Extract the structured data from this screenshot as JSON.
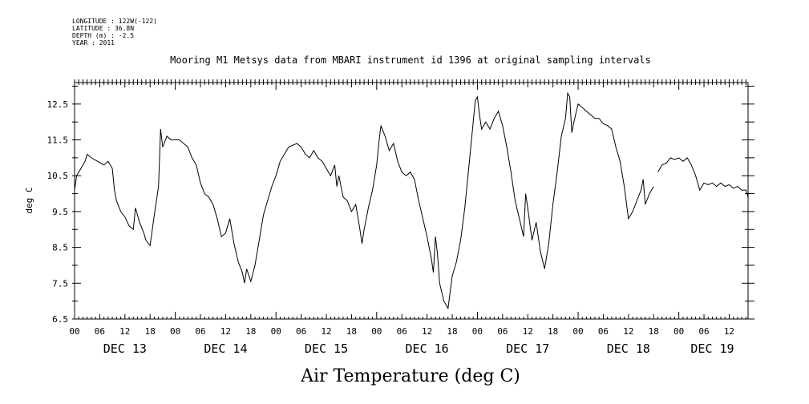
{
  "header": {
    "longitude": "LONGITUDE : 122W(-122)",
    "latitude": "LATITUDE : 36.8N",
    "depth": "DEPTH (m) : -2.5",
    "year": "YEAR : 2011"
  },
  "chart_data": {
    "type": "line",
    "title": "Mooring M1 Metsys data from MBARI instrument id 1396 at original sampling intervals",
    "ylabel": "deg C",
    "xlabel": "Air Temperature (deg C)",
    "ylim": [
      6.5,
      13.1
    ],
    "xlim": [
      0,
      160.5
    ],
    "y_ticks": [
      "6.5",
      "7.5",
      "8.5",
      "9.5",
      "10.5",
      "11.5",
      "12.5"
    ],
    "x_hour_labels": [
      "00",
      "06",
      "12",
      "18",
      "00",
      "06",
      "12",
      "18",
      "00",
      "06",
      "12",
      "18",
      "00",
      "06",
      "12",
      "18",
      "00",
      "06",
      "12",
      "18",
      "00",
      "06",
      "12",
      "18",
      "00",
      "06",
      "12"
    ],
    "x_day_labels": [
      {
        "label": "DEC 13",
        "hour": 12
      },
      {
        "label": "DEC 14",
        "hour": 36
      },
      {
        "label": "DEC 15",
        "hour": 60
      },
      {
        "label": "DEC 16",
        "hour": 84
      },
      {
        "label": "DEC 17",
        "hour": 108
      },
      {
        "label": "DEC 18",
        "hour": 132
      },
      {
        "label": "DEC 19",
        "hour": 152
      }
    ],
    "series": [
      {
        "x_unit": "hours since DEC 13 00:00",
        "segments": [
          [
            [
              0,
              10.1
            ],
            [
              0.5,
              10.5
            ],
            [
              1.5,
              10.7
            ],
            [
              2.5,
              10.9
            ],
            [
              3,
              11.1
            ],
            [
              4,
              11.0
            ],
            [
              5.5,
              10.9
            ],
            [
              7,
              10.8
            ],
            [
              8,
              10.9
            ],
            [
              9,
              10.7
            ],
            [
              9.5,
              10.1
            ],
            [
              10,
              9.8
            ],
            [
              11,
              9.5
            ],
            [
              12,
              9.35
            ],
            [
              13,
              9.1
            ],
            [
              14,
              9.0
            ],
            [
              14.5,
              9.6
            ],
            [
              15.5,
              9.2
            ],
            [
              16.5,
              8.9
            ],
            [
              17,
              8.7
            ],
            [
              18,
              8.55
            ],
            [
              19,
              9.4
            ],
            [
              20,
              10.2
            ],
            [
              20.5,
              11.8
            ],
            [
              21,
              11.3
            ],
            [
              22,
              11.6
            ],
            [
              23,
              11.5
            ],
            [
              25,
              11.5
            ],
            [
              27,
              11.3
            ],
            [
              28,
              11.0
            ],
            [
              29,
              10.8
            ],
            [
              30,
              10.3
            ],
            [
              31,
              10.0
            ],
            [
              32,
              9.9
            ],
            [
              33,
              9.7
            ],
            [
              34,
              9.3
            ],
            [
              35,
              8.8
            ],
            [
              36,
              8.9
            ],
            [
              37,
              9.3
            ],
            [
              38,
              8.6
            ],
            [
              39,
              8.1
            ],
            [
              40,
              7.8
            ],
            [
              40.5,
              7.5
            ],
            [
              41,
              7.9
            ],
            [
              42,
              7.55
            ],
            [
              43,
              8.0
            ],
            [
              44,
              8.7
            ],
            [
              45,
              9.4
            ],
            [
              46,
              9.8
            ],
            [
              47,
              10.2
            ],
            [
              48,
              10.5
            ],
            [
              49,
              10.9
            ],
            [
              50,
              11.1
            ],
            [
              51,
              11.3
            ],
            [
              52,
              11.35
            ],
            [
              53,
              11.4
            ],
            [
              54,
              11.3
            ],
            [
              55,
              11.1
            ],
            [
              56,
              11.0
            ],
            [
              57,
              11.2
            ],
            [
              58,
              11.0
            ],
            [
              59,
              10.9
            ],
            [
              60,
              10.7
            ],
            [
              61,
              10.5
            ],
            [
              62,
              10.8
            ],
            [
              62.5,
              10.2
            ],
            [
              63,
              10.5
            ],
            [
              64,
              9.9
            ],
            [
              65,
              9.8
            ],
            [
              66,
              9.5
            ],
            [
              67,
              9.7
            ],
            [
              68,
              9.0
            ],
            [
              68.5,
              8.6
            ],
            [
              69,
              9.0
            ],
            [
              70,
              9.6
            ],
            [
              71,
              10.1
            ],
            [
              72,
              10.8
            ],
            [
              72.5,
              11.4
            ],
            [
              73,
              11.9
            ],
            [
              74,
              11.6
            ],
            [
              75,
              11.2
            ],
            [
              76,
              11.4
            ],
            [
              77,
              10.9
            ],
            [
              78,
              10.6
            ],
            [
              79,
              10.5
            ],
            [
              80,
              10.6
            ],
            [
              81,
              10.4
            ],
            [
              82,
              9.8
            ],
            [
              83,
              9.3
            ],
            [
              84,
              8.8
            ],
            [
              85,
              8.2
            ],
            [
              85.5,
              7.8
            ],
            [
              86,
              8.8
            ],
            [
              86.5,
              8.3
            ],
            [
              87,
              7.5
            ],
            [
              88,
              7.0
            ],
            [
              89,
              6.8
            ],
            [
              90,
              7.7
            ],
            [
              91,
              8.1
            ],
            [
              92,
              8.7
            ],
            [
              93,
              9.6
            ],
            [
              94,
              10.8
            ],
            [
              95,
              12.0
            ],
            [
              95.5,
              12.6
            ],
            [
              96,
              12.7
            ],
            [
              96.5,
              12.2
            ],
            [
              97,
              11.8
            ],
            [
              98,
              12.0
            ],
            [
              99,
              11.8
            ],
            [
              100,
              12.1
            ],
            [
              101,
              12.3
            ],
            [
              102,
              11.9
            ],
            [
              103,
              11.3
            ],
            [
              104,
              10.6
            ],
            [
              105,
              9.8
            ],
            [
              106,
              9.3
            ],
            [
              107,
              8.8
            ],
            [
              107.5,
              10.0
            ],
            [
              108,
              9.6
            ],
            [
              109,
              8.7
            ],
            [
              110,
              9.2
            ],
            [
              111,
              8.4
            ],
            [
              112,
              7.9
            ],
            [
              113,
              8.6
            ],
            [
              114,
              9.7
            ],
            [
              115,
              10.6
            ],
            [
              116,
              11.6
            ],
            [
              117,
              12.1
            ],
            [
              117.5,
              12.8
            ],
            [
              118,
              12.7
            ],
            [
              118.5,
              11.7
            ],
            [
              119,
              12.0
            ],
            [
              120,
              12.5
            ],
            [
              121,
              12.4
            ],
            [
              122,
              12.3
            ],
            [
              123,
              12.2
            ],
            [
              124,
              12.1
            ],
            [
              125,
              12.1
            ],
            [
              126,
              11.95
            ],
            [
              127,
              11.9
            ],
            [
              128,
              11.8
            ],
            [
              129,
              11.3
            ],
            [
              130,
              10.9
            ],
            [
              131,
              10.2
            ],
            [
              132,
              9.3
            ],
            [
              133,
              9.5
            ],
            [
              134,
              9.8
            ],
            [
              135,
              10.1
            ],
            [
              135.5,
              10.4
            ],
            [
              136,
              9.7
            ],
            [
              137,
              10.0
            ],
            [
              138,
              10.2
            ]
          ],
          [
            [
              139,
              10.6
            ],
            [
              140,
              10.8
            ],
            [
              141,
              10.85
            ],
            [
              142,
              11.0
            ],
            [
              143,
              10.95
            ],
            [
              144,
              11.0
            ],
            [
              145,
              10.9
            ],
            [
              146,
              11.0
            ],
            [
              147,
              10.8
            ],
            [
              148,
              10.5
            ],
            [
              149,
              10.1
            ],
            [
              150,
              10.3
            ],
            [
              151,
              10.25
            ],
            [
              152,
              10.3
            ],
            [
              153,
              10.2
            ],
            [
              154,
              10.3
            ],
            [
              155,
              10.2
            ],
            [
              156,
              10.25
            ],
            [
              157,
              10.15
            ],
            [
              158,
              10.2
            ],
            [
              159,
              10.1
            ],
            [
              160,
              10.1
            ],
            [
              160.5,
              9.9
            ]
          ]
        ]
      }
    ],
    "grid": false,
    "legend": "none"
  }
}
